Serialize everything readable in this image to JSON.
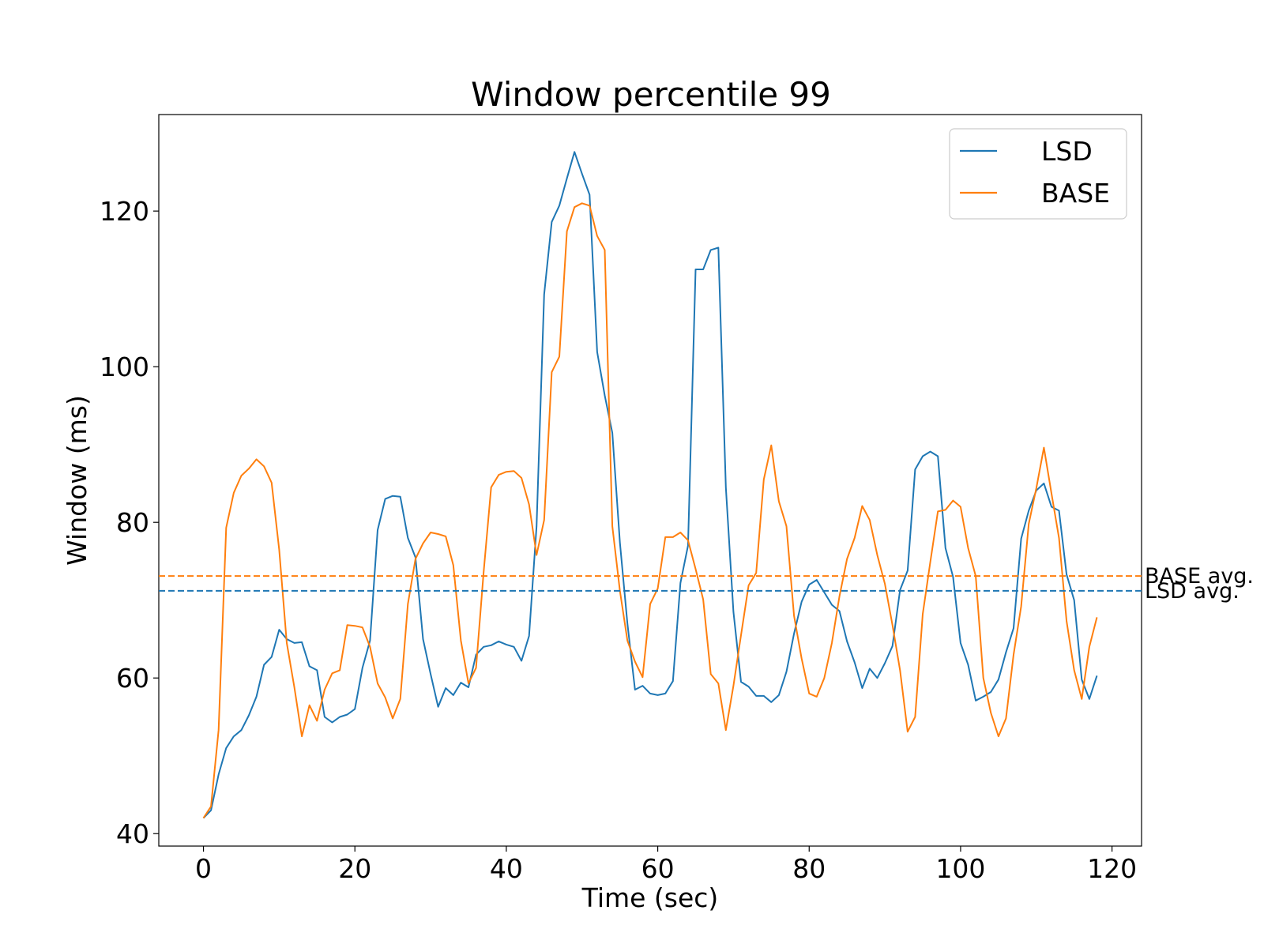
{
  "chart_data": {
    "type": "line",
    "title": "Window percentile 99",
    "xlabel": "Time (sec)",
    "ylabel": "Window (ms)",
    "xlim": [
      -5.9,
      123.9
    ],
    "ylim": [
      38.4,
      132.4
    ],
    "xticks": [
      0,
      20,
      40,
      60,
      80,
      100,
      120
    ],
    "yticks": [
      40,
      60,
      80,
      100,
      120
    ],
    "grid": false,
    "legend_position": "top-right",
    "colors": {
      "LSD": "#1f77b4",
      "BASE": "#ff7f0e"
    },
    "series": [
      {
        "name": "LSD",
        "x": [
          0,
          1,
          2,
          3,
          4,
          5,
          6,
          7,
          8,
          9,
          10,
          11,
          12,
          13,
          14,
          15,
          16,
          17,
          18,
          19,
          20,
          21,
          22,
          23,
          24,
          25,
          26,
          27,
          28,
          29,
          30,
          31,
          32,
          33,
          34,
          35,
          36,
          37,
          38,
          39,
          40,
          41,
          42,
          43,
          44,
          45,
          46,
          47,
          48,
          49,
          50,
          51,
          52,
          53,
          54,
          55,
          56,
          57,
          58,
          59,
          60,
          61,
          62,
          63,
          64,
          65,
          66,
          67,
          68,
          69,
          70,
          71,
          72,
          73,
          74,
          75,
          76,
          77,
          78,
          79,
          80,
          81,
          82,
          83,
          84,
          85,
          86,
          87,
          88,
          89,
          90,
          91,
          92,
          93,
          94,
          95,
          96,
          97,
          98,
          99,
          100,
          101,
          102,
          103,
          104,
          105,
          106,
          107,
          108,
          109,
          110,
          111,
          112,
          113,
          114,
          115,
          116,
          117,
          118
        ],
        "values": [
          42,
          43,
          47.6,
          51,
          52.5,
          53.3,
          55.2,
          57.6,
          61.7,
          62.7,
          66.2,
          65,
          64.5,
          64.6,
          61.5,
          61,
          55,
          54.3,
          55,
          55.3,
          56,
          61.3,
          64.8,
          79,
          83,
          83.4,
          83.3,
          78,
          75.5,
          65,
          60.5,
          56.3,
          58.7,
          57.8,
          59.4,
          58.8,
          63,
          64,
          64.2,
          64.7,
          64.3,
          64,
          62.2,
          65.4,
          79.5,
          109.3,
          118.6,
          120.7,
          124.2,
          127.6,
          124.8,
          122.1,
          101.9,
          96.3,
          91.5,
          77.4,
          67,
          58.5,
          59,
          58,
          57.8,
          58,
          59.6,
          72.2,
          77,
          112.5,
          112.5,
          115,
          115.3,
          84.5,
          68.5,
          59.5,
          58.9,
          57.7,
          57.7,
          56.9,
          57.8,
          60.8,
          65.7,
          69.8,
          72,
          72.6,
          71,
          69.4,
          68.6,
          64.7,
          62,
          58.7,
          61.2,
          60,
          61.9,
          64.1,
          71.3,
          73.8,
          86.8,
          88.5,
          89.1,
          88.5,
          76.7,
          73,
          64.5,
          61.7,
          57.1,
          57.6,
          58.2,
          59.8,
          63.3,
          66.4,
          77.9,
          81.5,
          84.1,
          85,
          82,
          81.5,
          73.3,
          70,
          59.8,
          57.3,
          60.3
        ]
      },
      {
        "name": "BASE",
        "x": [
          0,
          1,
          2,
          3,
          4,
          5,
          6,
          7,
          8,
          9,
          10,
          11,
          12,
          13,
          14,
          15,
          16,
          17,
          18,
          19,
          20,
          21,
          22,
          23,
          24,
          25,
          26,
          27,
          28,
          29,
          30,
          31,
          32,
          33,
          34,
          35,
          36,
          37,
          38,
          39,
          40,
          41,
          42,
          43,
          44,
          45,
          46,
          47,
          48,
          49,
          50,
          51,
          52,
          53,
          54,
          55,
          56,
          57,
          58,
          59,
          60,
          61,
          62,
          63,
          64,
          65,
          66,
          67,
          68,
          69,
          70,
          71,
          72,
          73,
          74,
          75,
          76,
          77,
          78,
          79,
          80,
          81,
          82,
          83,
          84,
          85,
          86,
          87,
          88,
          89,
          90,
          91,
          92,
          93,
          94,
          95,
          96,
          97,
          98,
          99,
          100,
          101,
          102,
          103,
          104,
          105,
          106,
          107,
          108,
          109,
          110,
          111,
          112,
          113,
          114,
          115,
          116,
          117,
          118
        ],
        "values": [
          42,
          43.5,
          53.3,
          79.3,
          83.8,
          86,
          86.9,
          88.1,
          87.2,
          85.1,
          76.5,
          64.5,
          58.8,
          52.5,
          56.5,
          54.5,
          58.5,
          60.6,
          61,
          66.8,
          66.7,
          66.5,
          64,
          59.3,
          57.5,
          54.8,
          57.3,
          69.5,
          75.3,
          77.3,
          78.7,
          78.5,
          78.2,
          74.5,
          64.8,
          59.3,
          61.3,
          73.6,
          84.5,
          86.1,
          86.5,
          86.6,
          85.7,
          82.3,
          75.8,
          80.3,
          99.3,
          101.3,
          117.4,
          120.5,
          121,
          120.7,
          116.8,
          115,
          79.5,
          71.2,
          64.8,
          62.1,
          60.1,
          69.5,
          71.5,
          78.1,
          78.1,
          78.7,
          77.7,
          74,
          70.1,
          60.5,
          59.3,
          53.3,
          59,
          65.5,
          71.9,
          73.5,
          85.5,
          89.9,
          82.7,
          79.5,
          68,
          62.5,
          58,
          57.6,
          60,
          64.5,
          70.5,
          75.3,
          78,
          82.1,
          80.3,
          75.8,
          72.1,
          66.8,
          61,
          53.1,
          55,
          68.2,
          74.9,
          81.4,
          81.6,
          82.8,
          82,
          76.7,
          73.1,
          60,
          55.5,
          52.5,
          54.8,
          63,
          69.2,
          79.8,
          84.4,
          89.6,
          83.7,
          78,
          67.3,
          61,
          57.3,
          64,
          67.8
        ]
      }
    ],
    "reference_lines": [
      {
        "label": "LSD avg.",
        "y": 71.2,
        "style": "dashed",
        "series": "LSD"
      },
      {
        "label": "BASE avg.",
        "y": 73.1,
        "style": "dashed",
        "series": "BASE"
      }
    ]
  }
}
